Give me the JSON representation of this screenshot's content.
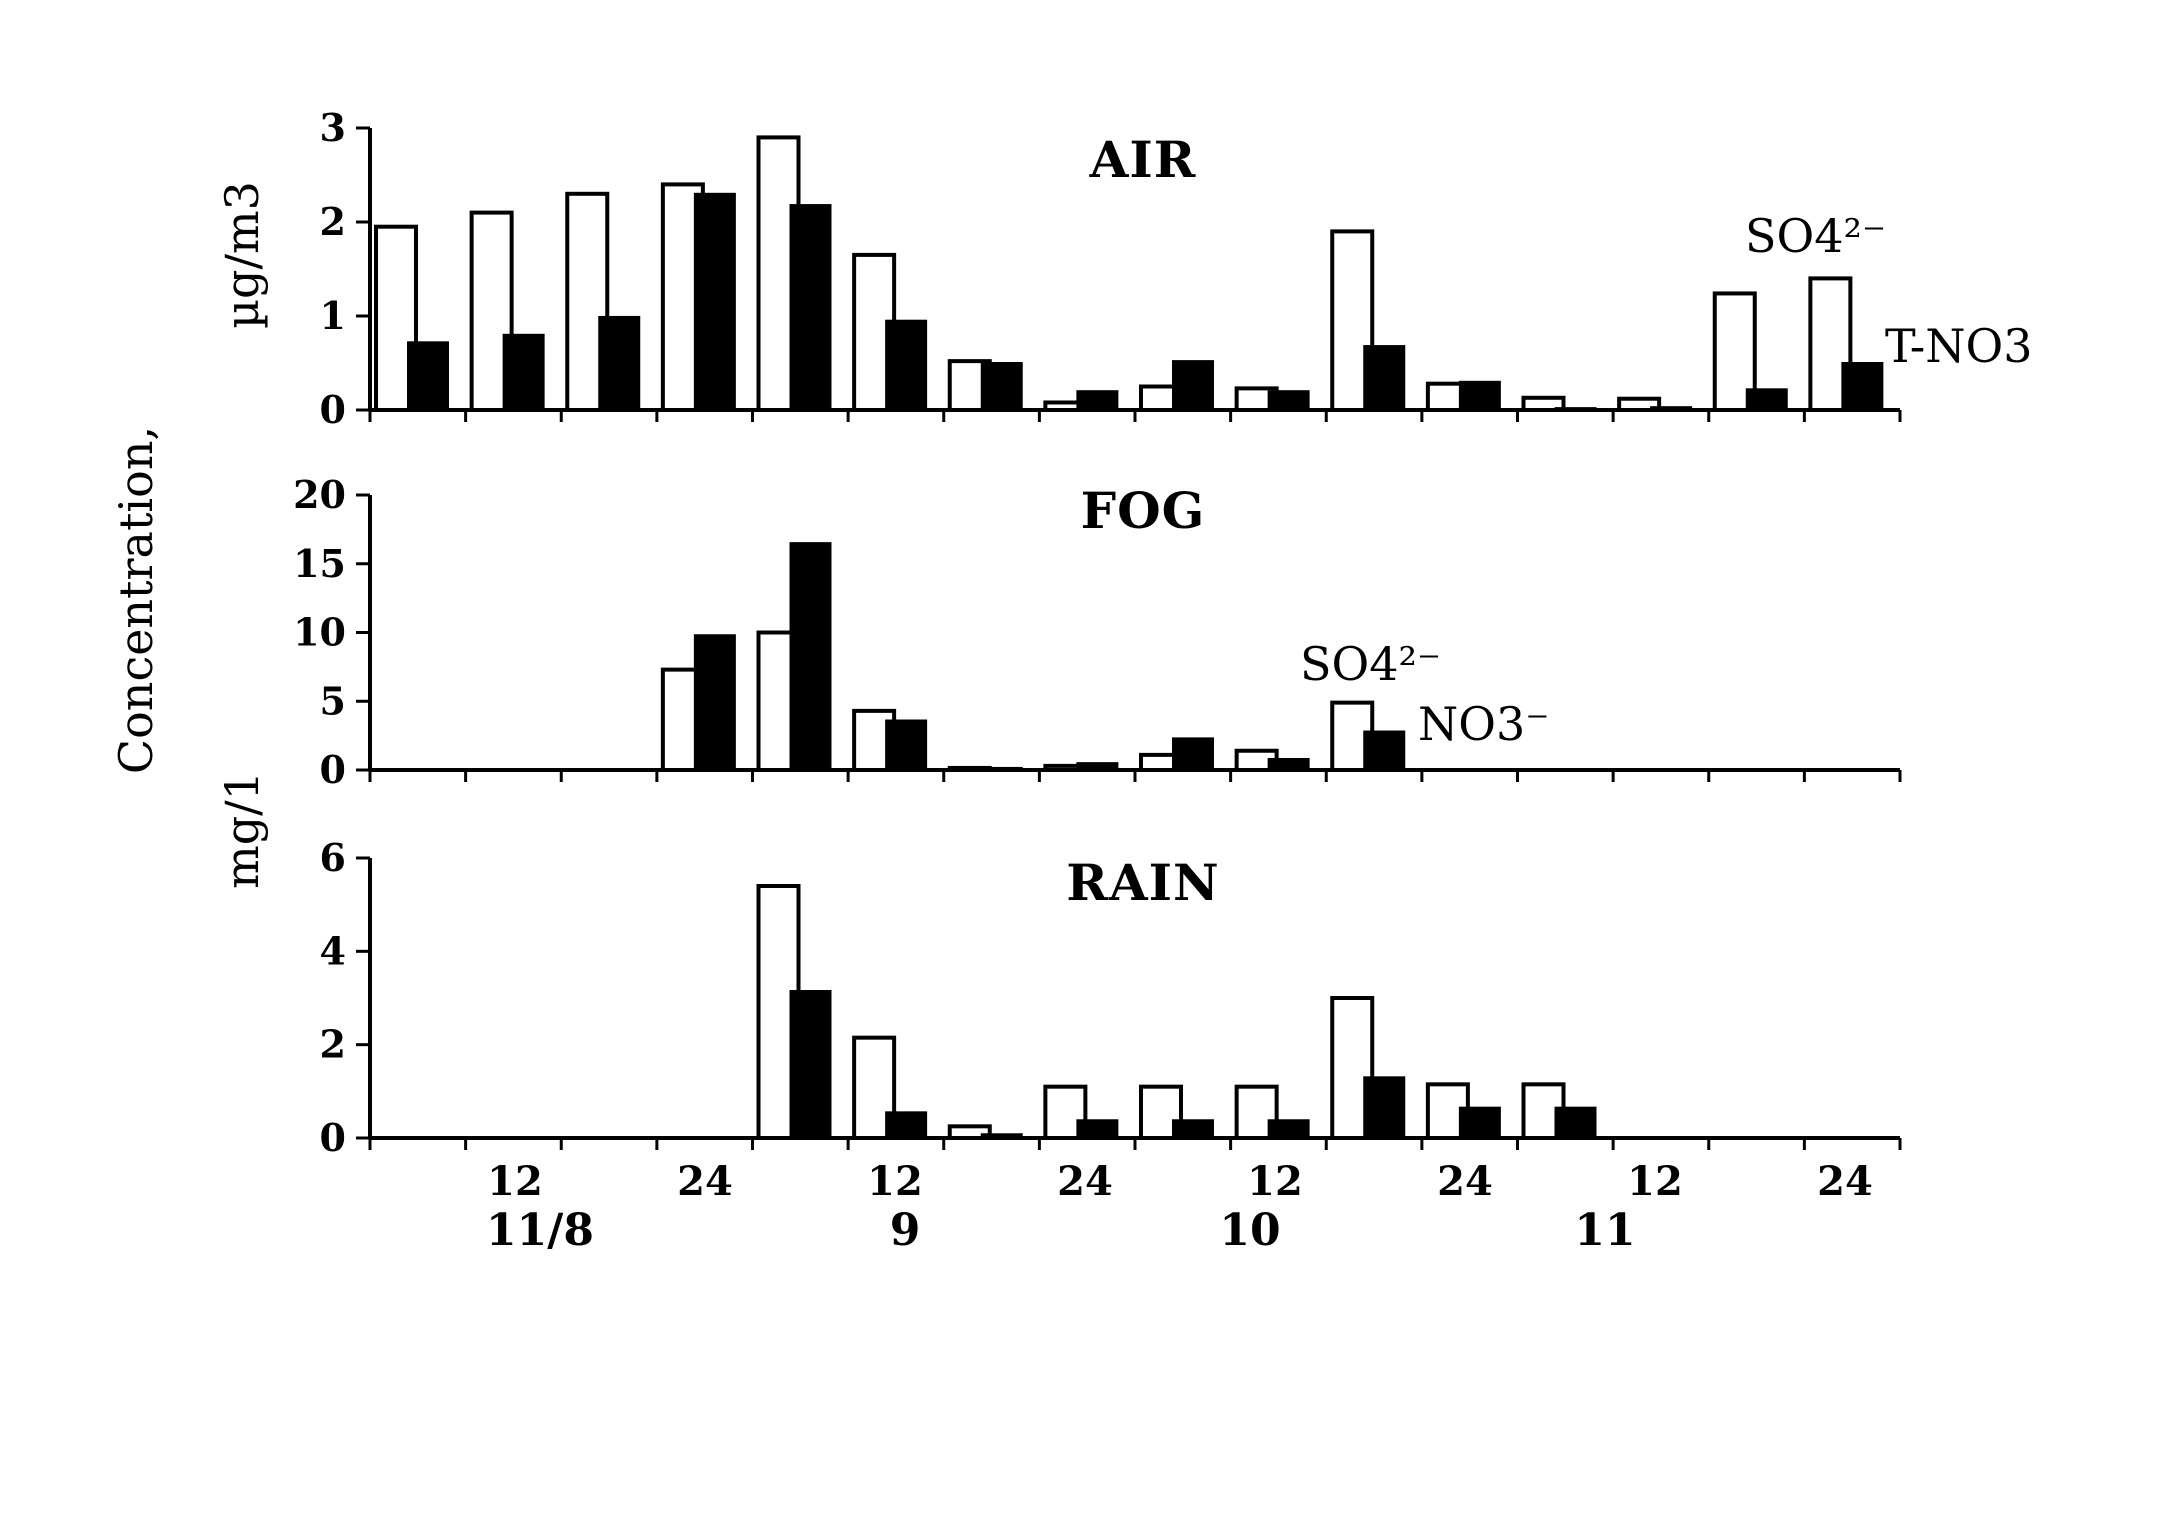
{
  "chart_data": [
    {
      "type": "bar",
      "title": "AIR",
      "ylabel": "µg/m3",
      "ylim": [
        0,
        3
      ],
      "yticks": [
        "0",
        "1",
        "2",
        "3"
      ],
      "series": [
        {
          "name": "SO4²⁻",
          "style": "open",
          "values": [
            1.95,
            2.1,
            2.3,
            2.4,
            2.9,
            1.65,
            0.52,
            0.08,
            0.25,
            0.23,
            1.9,
            0.28,
            0.13,
            0.12,
            1.24,
            1.4
          ]
        },
        {
          "name": "T-NO3",
          "style": "solid",
          "values": [
            0.72,
            0.8,
            0.99,
            2.3,
            2.18,
            0.95,
            0.5,
            0.2,
            0.52,
            0.2,
            0.68,
            0.3,
            0.02,
            0.03,
            0.22,
            0.5
          ]
        }
      ]
    },
    {
      "type": "bar",
      "title": "FOG",
      "ylabel": "",
      "ylim": [
        0,
        20
      ],
      "yticks": [
        "0",
        "5",
        "10",
        "15",
        "20"
      ],
      "series": [
        {
          "name": "SO4²⁻",
          "style": "open",
          "values": [
            0,
            0,
            0,
            7.3,
            10,
            4.3,
            0.15,
            0.3,
            1.1,
            1.4,
            4.9,
            0,
            0,
            0,
            0,
            0
          ]
        },
        {
          "name": "NO3⁻",
          "style": "solid",
          "values": [
            0,
            0,
            0,
            9.8,
            16.5,
            3.6,
            0.15,
            0.5,
            2.3,
            0.8,
            2.8,
            0,
            0,
            0,
            0,
            0
          ]
        }
      ]
    },
    {
      "type": "bar",
      "title": "RAIN",
      "ylabel": "mg/1",
      "ylim": [
        0,
        6
      ],
      "yticks": [
        "0",
        "2",
        "4",
        "6"
      ],
      "series": [
        {
          "name": "SO4²⁻",
          "style": "open",
          "values": [
            0,
            0,
            0,
            0,
            5.4,
            2.15,
            0.25,
            1.1,
            1.1,
            1.1,
            3,
            1.15,
            1.15,
            0,
            0,
            0
          ]
        },
        {
          "name": "NO3⁻",
          "style": "solid",
          "values": [
            0,
            0,
            0,
            0,
            3.15,
            0.55,
            0.08,
            0.38,
            0.38,
            0.38,
            1.3,
            0.65,
            0.65,
            0,
            0,
            0
          ]
        }
      ]
    }
  ],
  "shared_ylabel": "Concentration,",
  "x_tick_labels": [
    "12",
    "24",
    "12",
    "24",
    "12",
    "24",
    "12",
    "24"
  ],
  "date_labels": [
    "11/8",
    "9",
    "10",
    "11"
  ],
  "annotations": {
    "air_so4": "SO4²⁻",
    "air_tno3": "T-NO3",
    "fog_so4": "SO4²⁻",
    "fog_no3": "NO3⁻"
  }
}
